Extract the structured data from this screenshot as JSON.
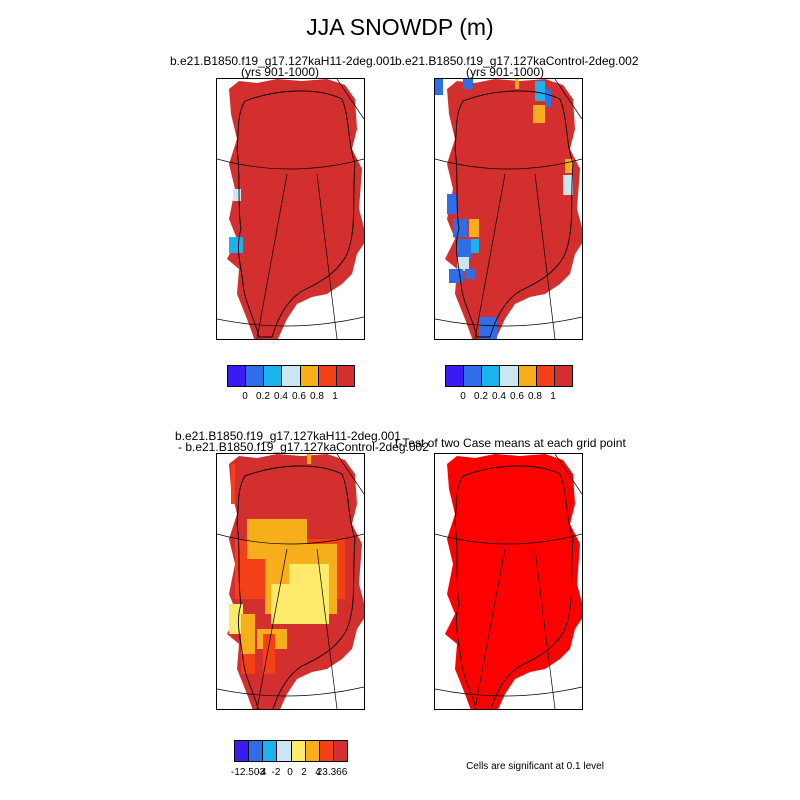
{
  "title": "JJA SNOWDP (m)",
  "panels": {
    "p1": {
      "line1": "b.e21.B1850.f19_g17.127kaH11-2deg.001",
      "line2": "(yrs 901-1000)"
    },
    "p2": {
      "line1": "b.e21.B1850.f19_g17.127kaControl-2deg.002",
      "line2": "(yrs 901-1000)"
    },
    "p3": {
      "line1": "b.e21.B1850.f19_g17.127kaH11-2deg.001",
      "line2": "- b.e21.B1850.f19_g17.127kaControl-2deg.002"
    },
    "p4": {
      "line1": "t-Test of two Case means at each grid point"
    }
  },
  "colorbar_abs": {
    "colors": [
      "#3a1cf2",
      "#2f6ee6",
      "#1ab3ee",
      "#c9e6f2",
      "#f6ae1a",
      "#f44016",
      "#d32f2f"
    ],
    "labels": [
      "0",
      "0.2",
      "0.4",
      "0.6",
      "0.8",
      "1"
    ]
  },
  "colorbar_diff": {
    "colors": [
      "#3a1cf2",
      "#2f6ee6",
      "#1ab3ee",
      "#c9e6f2",
      "#fde96a",
      "#f6ae1a",
      "#f44016",
      "#d32f2f"
    ],
    "labels": [
      "-12.503",
      "-4",
      "-2",
      "0",
      "2",
      "4",
      "23.366"
    ]
  },
  "significance_note": "Cells are significant at 0.1 level",
  "map_colors": {
    "snow_full": "#d32f2f",
    "signif": "#ff0000",
    "diff_high": "#fde96a",
    "diff_mid": "#f6ae1a",
    "diff_low": "#f44016",
    "blue": "#2f6ee6",
    "cyan": "#1ab3ee",
    "pale": "#c9e6f2",
    "orange": "#f6ae1a"
  }
}
